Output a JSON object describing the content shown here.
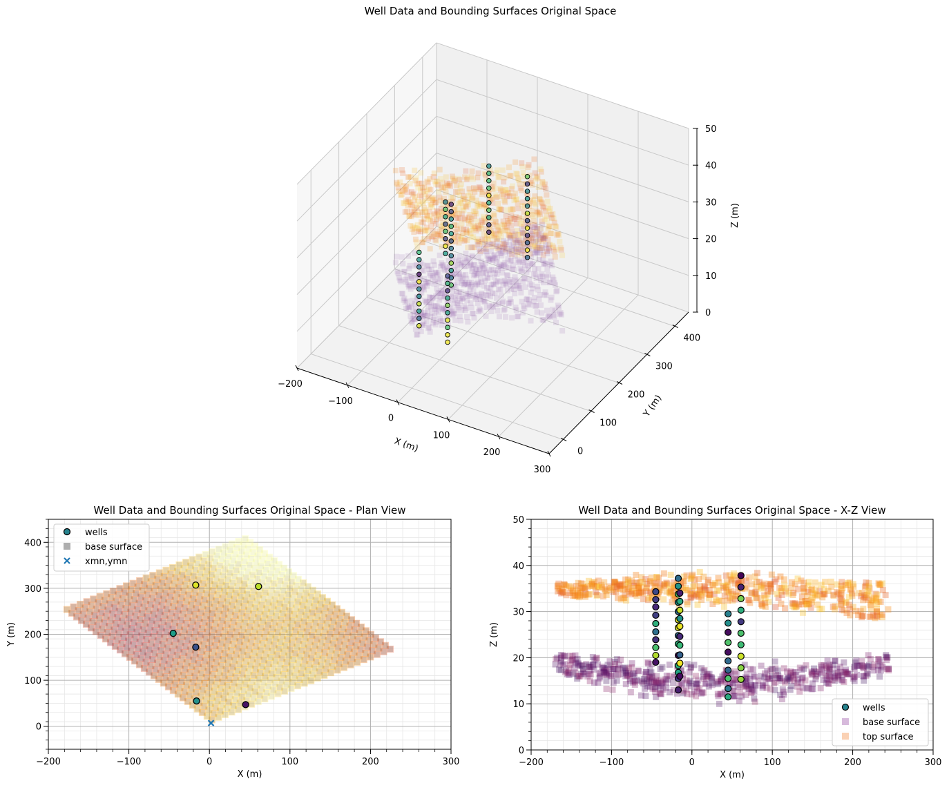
{
  "figure": {
    "suptitle": "Well Data and Bounding Surfaces Original Space"
  },
  "chart_data": [
    {
      "id": "view3d",
      "type": "scatter",
      "projection": "3d",
      "title": "",
      "xlabel": "X (m)",
      "ylabel": "Y (m)",
      "zlabel": "Z (m)",
      "xlim": [
        -200,
        300
      ],
      "ylim": [
        -50,
        450
      ],
      "zlim": [
        0,
        50
      ],
      "xticks": [
        "−200",
        "−100",
        "0",
        "100",
        "200",
        "300"
      ],
      "yticks": [
        "0",
        "100",
        "200",
        "300",
        "400"
      ],
      "zticks": [
        "0",
        "10",
        "20",
        "30",
        "40",
        "50"
      ],
      "grid": true,
      "series": [
        {
          "marker": "square",
          "color": "#8c5aa6",
          "alpha": 0.18
        },
        {
          "marker": "square",
          "color": "#f4a261",
          "alpha": 0.18
        },
        {
          "marker": "circle",
          "colormap": "viridis"
        }
      ]
    },
    {
      "id": "plan",
      "type": "scatter",
      "title": "Well Data and Bounding Surfaces Original Space - Plan View",
      "xlabel": "X (m)",
      "ylabel": "Y (m)",
      "xlim": [
        -200,
        300
      ],
      "ylim": [
        -50,
        450
      ],
      "xticks": [
        "−200",
        "−100",
        "0",
        "100",
        "200",
        "300"
      ],
      "yticks": [
        "0",
        "100",
        "200",
        "300",
        "400"
      ],
      "grid": true,
      "legend_position": "upper-left",
      "legend": [
        "wells",
        "base surface",
        "xmn,ymn"
      ],
      "series": [
        {
          "name": "wells",
          "marker": "circle",
          "colormap": "viridis",
          "points": [
            {
              "x": -17,
              "y": 307,
              "c": 0.95
            },
            {
              "x": 61,
              "y": 304,
              "c": 0.9
            },
            {
              "x": -45,
              "y": 202,
              "c": 0.55
            },
            {
              "x": -17,
              "y": 172,
              "c": 0.25
            },
            {
              "x": -16,
              "y": 55,
              "c": 0.5
            },
            {
              "x": 45,
              "y": 47,
              "c": 0.05
            }
          ]
        },
        {
          "name": "base surface",
          "marker": "square",
          "color": "#8c8c8c"
        },
        {
          "name": "xmn,ymn",
          "marker": "x",
          "color": "#1f77b4",
          "points": [
            {
              "x": 2,
              "y": 7
            }
          ]
        }
      ]
    },
    {
      "id": "xz",
      "type": "scatter",
      "title": "Well Data and Bounding Surfaces Original Space - X-Z View",
      "xlabel": "X (m)",
      "ylabel": "Z (m)",
      "xlim": [
        -200,
        300
      ],
      "ylim": [
        0,
        50
      ],
      "xticks": [
        "−200",
        "−100",
        "0",
        "100",
        "200",
        "300"
      ],
      "yticks": [
        "0",
        "10",
        "20",
        "30",
        "40",
        "50"
      ],
      "grid": true,
      "legend_position": "lower-right",
      "legend": [
        "wells",
        "base surface",
        "top surface"
      ],
      "series": [
        {
          "name": "wells",
          "marker": "circle",
          "colormap": "viridis",
          "wells": [
            {
              "x": -45,
              "z": [
                19,
                20.5,
                22.2,
                23.9,
                25.6,
                27.4,
                29.2,
                31,
                32.6,
                34.3
              ]
            },
            {
              "x": -17,
              "z": [
                13,
                15.5,
                16.8,
                18.3,
                20.5,
                23,
                24.8,
                26.5,
                28.2,
                30,
                32,
                33.8,
                35.5,
                37.2
              ]
            },
            {
              "x": -15,
              "z": [
                16,
                18.8,
                20.6,
                22.7,
                24.6,
                26.8,
                28.5,
                30.3,
                32.2,
                34
              ]
            },
            {
              "x": 45,
              "z": [
                11.5,
                13.3,
                15.5,
                17.3,
                19.3,
                21.2,
                23.3,
                25.5,
                27.5,
                29.5
              ]
            },
            {
              "x": 61,
              "z": [
                15.3,
                17.8,
                20.3,
                22.8,
                25.3,
                27.8,
                30.3,
                32.8,
                35.3,
                37.8
              ]
            }
          ]
        },
        {
          "name": "base surface",
          "marker": "square",
          "color": "#8c3a9c",
          "z_range": [
            10,
            20
          ]
        },
        {
          "name": "top surface",
          "marker": "square",
          "color": "#f5a46a",
          "z_range": [
            30,
            40
          ]
        }
      ]
    }
  ]
}
